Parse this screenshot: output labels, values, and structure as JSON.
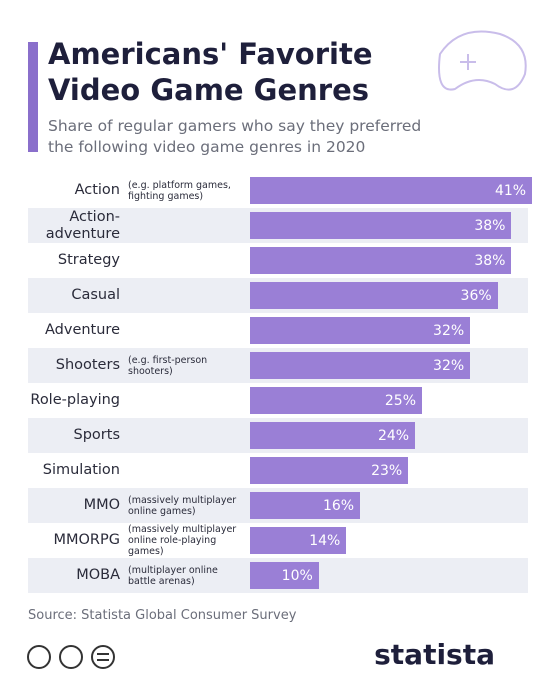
{
  "chart_data": {
    "type": "bar",
    "title": "Americans' Favorite Video Game Genres",
    "subtitle": "Share of regular gamers who say they preferred the following video game genres in 2020",
    "categories": [
      "Action",
      "Action-adventure",
      "Strategy",
      "Casual",
      "Adventure",
      "Shooters",
      "Role-playing",
      "Sports",
      "Simulation",
      "MMO",
      "MMORPG",
      "MOBA"
    ],
    "notes": [
      "(e.g. platform games, fighting games)",
      null,
      null,
      null,
      null,
      "(e.g. first-person shooters)",
      null,
      null,
      null,
      "(massively multiplayer online games)",
      "(massively multiplayer online role-playing games)",
      "(multiplayer online battle arenas)"
    ],
    "values": [
      41,
      38,
      38,
      36,
      32,
      32,
      25,
      24,
      23,
      16,
      14,
      10
    ],
    "value_labels": [
      "41%",
      "38%",
      "38%",
      "36%",
      "32%",
      "32%",
      "25%",
      "24%",
      "23%",
      "16%",
      "14%",
      "10%"
    ],
    "color": "#9a7fd6",
    "source": "Source: Statista Global Consumer Survey"
  },
  "brand": "statista"
}
